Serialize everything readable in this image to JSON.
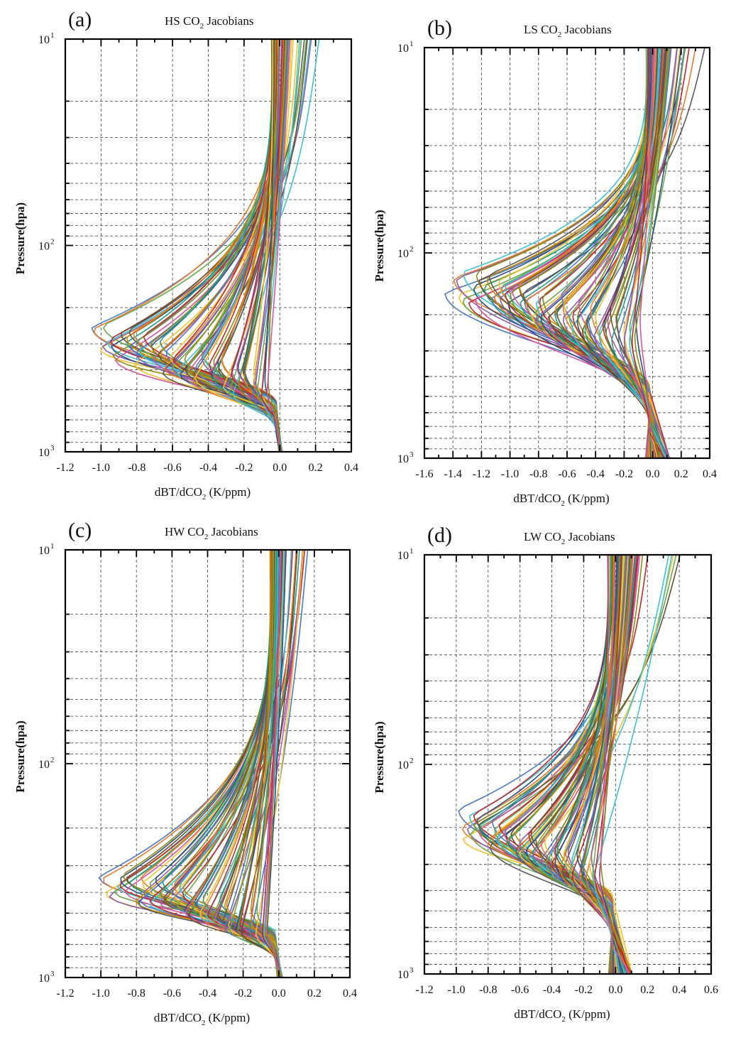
{
  "chart_data": [
    {
      "panel": "(a)",
      "title": "HS CO",
      "title_sub": "2",
      "title_rest": " Jacobians",
      "type": "line",
      "xlabel": "dBT/dCO",
      "xlabel_sub": "2",
      "xlabel_rest": " (K/ppm)",
      "ylabel": "Pressure(hpa)",
      "yscale": "log",
      "yreversed": true,
      "xlim": [
        -1.2,
        0.4
      ],
      "ylim": [
        10,
        1000
      ],
      "xticks": [
        "-1.2",
        "-1.0",
        "-0.8",
        "-0.6",
        "-0.4",
        "-0.2",
        "0.0",
        "0.2",
        "0.4"
      ],
      "yticks": [
        {
          "base": "10",
          "exp": "1"
        },
        {
          "base": "10",
          "exp": "2"
        },
        {
          "base": "10",
          "exp": "3"
        }
      ],
      "grid": true,
      "curve_family": {
        "count": 80,
        "peak_min": -1.06,
        "peak_max": -0.07,
        "peak_p_top": 230,
        "peak_p_bottom": 530,
        "low_p_top": 560,
        "low_p_bottom": 830,
        "surface_spread": 0.02,
        "top_right_max": 0.22
      }
    },
    {
      "panel": "(b)",
      "title": "LS CO",
      "title_sub": "2",
      "title_rest": " Jacobians",
      "type": "line",
      "xlabel": "dBT/dCO",
      "xlabel_sub": "2",
      "xlabel_rest": " (K/ppm)",
      "ylabel": "Pressure(hpa)",
      "yscale": "log",
      "yreversed": true,
      "xlim": [
        -1.6,
        0.4
      ],
      "ylim": [
        10,
        1000
      ],
      "xticks": [
        "-1.6",
        "-1.4",
        "-1.2",
        "-1.0",
        "-0.8",
        "-0.6",
        "-0.4",
        "-0.2",
        "0.0",
        "0.2",
        "0.4"
      ],
      "yticks": [
        {
          "base": "10",
          "exp": "1"
        },
        {
          "base": "10",
          "exp": "2"
        },
        {
          "base": "10",
          "exp": "3"
        }
      ],
      "grid": true,
      "curve_family": {
        "count": 80,
        "peak_min": -1.44,
        "peak_max": -0.1,
        "peak_p_top": 115,
        "peak_p_bottom": 260,
        "low_p_top": 420,
        "low_p_bottom": 780,
        "surface_spread": 0.17,
        "top_right_max": 0.38
      }
    },
    {
      "panel": "(c)",
      "title": "HW CO",
      "title_sub": "2",
      "title_rest": " Jacobians",
      "type": "line",
      "xlabel": "dBT/dCO",
      "xlabel_sub": "2",
      "xlabel_rest": " (K/ppm)",
      "ylabel": "Pressure(hpa)",
      "yscale": "log",
      "yreversed": true,
      "xlim": [
        -1.2,
        0.4
      ],
      "ylim": [
        10,
        1000
      ],
      "xticks": [
        "-1.2",
        "-1.0",
        "-0.8",
        "-0.6",
        "-0.4",
        "-0.2",
        "0.0",
        "0.2",
        "0.4"
      ],
      "yticks": [
        {
          "base": "10",
          "exp": "1"
        },
        {
          "base": "10",
          "exp": "2"
        },
        {
          "base": "10",
          "exp": "3"
        }
      ],
      "grid": true,
      "curve_family": {
        "count": 80,
        "peak_min": -1.01,
        "peak_max": -0.06,
        "peak_p_top": 290,
        "peak_p_bottom": 620,
        "low_p_top": 600,
        "low_p_bottom": 840,
        "surface_spread": 0.03,
        "top_right_max": 0.18
      }
    },
    {
      "panel": "(d)",
      "title": "LW CO",
      "title_sub": "2",
      "title_rest": " Jacobians",
      "type": "line",
      "xlabel": "dBT/dCO",
      "xlabel_sub": "2",
      "xlabel_rest": " (K/ppm)",
      "ylabel": "Pressure(hpa)",
      "yscale": "log",
      "yreversed": true,
      "xlim": [
        -1.2,
        0.6
      ],
      "ylim": [
        10,
        1000
      ],
      "xticks": [
        "-1.2",
        "-1.0",
        "-0.8",
        "-0.6",
        "-0.4",
        "-0.2",
        "0.0",
        "0.2",
        "0.4",
        "0.6"
      ],
      "yticks": [
        {
          "base": "10",
          "exp": "1"
        },
        {
          "base": "10",
          "exp": "2"
        },
        {
          "base": "10",
          "exp": "3"
        }
      ],
      "grid": true,
      "curve_family": {
        "count": 80,
        "peak_min": -1.0,
        "peak_max": -0.1,
        "peak_p_top": 160,
        "peak_p_bottom": 340,
        "low_p_top": 380,
        "low_p_bottom": 760,
        "surface_spread": 0.15,
        "top_right_max": 0.42
      }
    }
  ],
  "palette": [
    "#4e79c4",
    "#e8792b",
    "#f2c12e",
    "#8a5fb0",
    "#6aa84f",
    "#3ec1d3",
    "#c1272d",
    "#2f4f7f",
    "#8b8c16",
    "#d4559f",
    "#6b4f2a",
    "#1f9e89",
    "#c98a00",
    "#5b5b5b"
  ]
}
